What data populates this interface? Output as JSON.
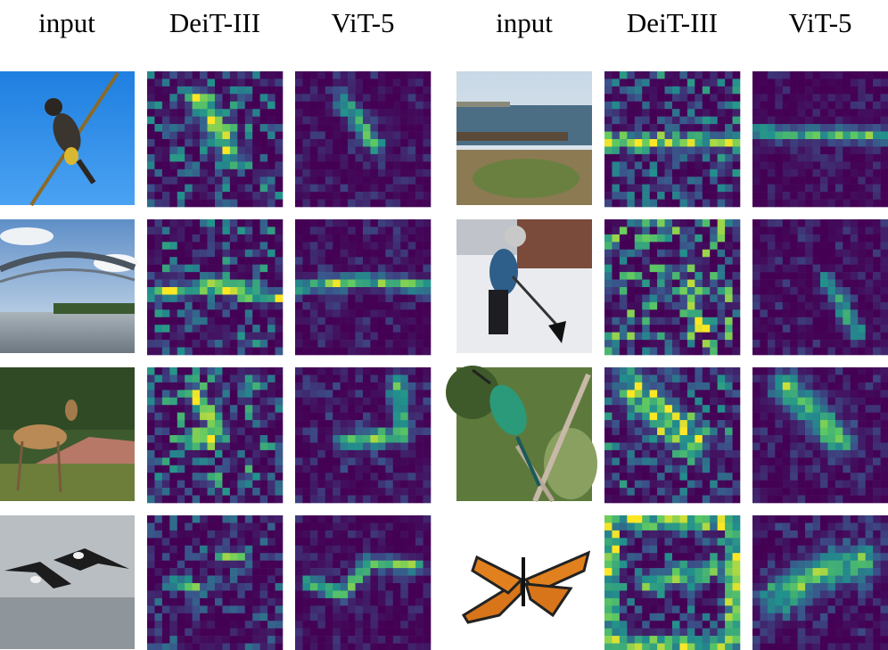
{
  "headers": [
    "input",
    "DeiT-III",
    "ViT-5",
    "input",
    "DeiT-III",
    "ViT-5"
  ]
}
